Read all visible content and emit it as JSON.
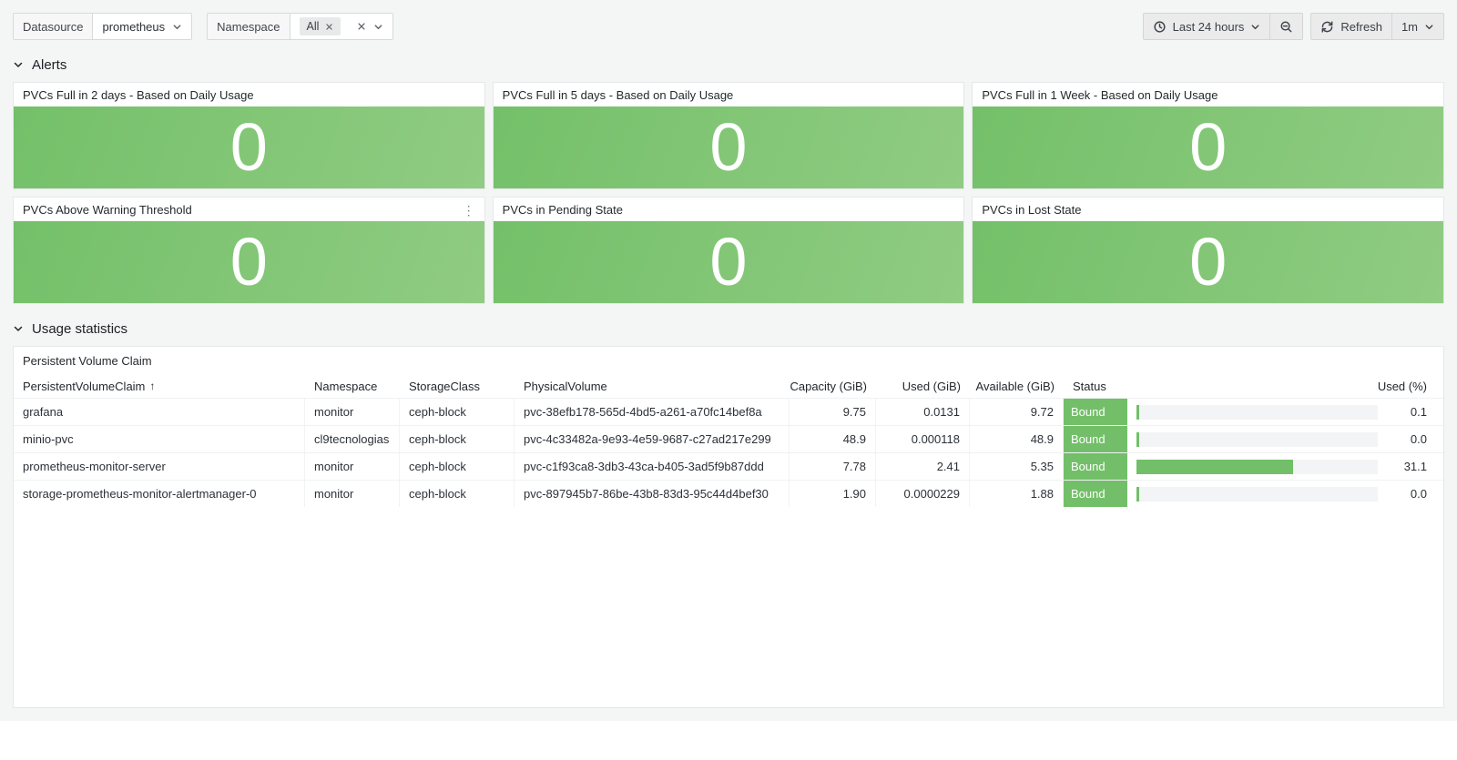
{
  "toolbar": {
    "datasource_label": "Datasource",
    "datasource_value": "prometheus",
    "namespace_label": "Namespace",
    "namespace_tag": "All",
    "time_range": "Last 24 hours",
    "refresh_label": "Refresh",
    "refresh_interval": "1m"
  },
  "sections": {
    "alerts": "Alerts",
    "usage": "Usage statistics"
  },
  "alert_panels": [
    {
      "title": "PVCs Full in 2 days - Based on Daily Usage",
      "value": "0"
    },
    {
      "title": "PVCs Full in 5 days - Based on Daily Usage",
      "value": "0"
    },
    {
      "title": "PVCs Full in 1 Week - Based on Daily Usage",
      "value": "0"
    },
    {
      "title": "PVCs Above Warning Threshold",
      "value": "0"
    },
    {
      "title": "PVCs in Pending State",
      "value": "0"
    },
    {
      "title": "PVCs in Lost State",
      "value": "0"
    }
  ],
  "table_panel": {
    "title": "Persistent Volume Claim",
    "headers": {
      "name": "PersistentVolumeClaim",
      "namespace": "Namespace",
      "storageclass": "StorageClass",
      "physicalvolume": "PhysicalVolume",
      "capacity": "Capacity (GiB)",
      "used": "Used (GiB)",
      "available": "Available (GiB)",
      "status": "Status",
      "used_pct": "Used (%)"
    },
    "rows": [
      {
        "name": "grafana",
        "namespace": "monitor",
        "storageclass": "ceph-block",
        "physicalvolume": "pvc-38efb178-565d-4bd5-a261-a70fc14bef8a",
        "capacity": "9.75",
        "used": "0.0131",
        "available": "9.72",
        "status": "Bound",
        "used_pct": "0.1",
        "bar_fill_pct": 1
      },
      {
        "name": "minio-pvc",
        "namespace": "cl9tecnologias",
        "storageclass": "ceph-block",
        "physicalvolume": "pvc-4c33482a-9e93-4e59-9687-c27ad217e299",
        "capacity": "48.9",
        "used": "0.000118",
        "available": "48.9",
        "status": "Bound",
        "used_pct": "0.0",
        "bar_fill_pct": 1
      },
      {
        "name": "prometheus-monitor-server",
        "namespace": "monitor",
        "storageclass": "ceph-block",
        "physicalvolume": "pvc-c1f93ca8-3db3-43ca-b405-3ad5f9b87ddd",
        "capacity": "7.78",
        "used": "2.41",
        "available": "5.35",
        "status": "Bound",
        "used_pct": "31.1",
        "bar_fill_pct": 65
      },
      {
        "name": "storage-prometheus-monitor-alertmanager-0",
        "namespace": "monitor",
        "storageclass": "ceph-block",
        "physicalvolume": "pvc-897945b7-86be-43b8-83d3-95c44d4bef30",
        "capacity": "1.90",
        "used": "0.0000229",
        "available": "1.88",
        "status": "Bound",
        "used_pct": "0.0",
        "bar_fill_pct": 1
      }
    ]
  },
  "icons": {
    "kebab": "⋮",
    "sort_asc": "↑"
  },
  "colors": {
    "green": "#73bf69",
    "stat_green_1": "#74c069",
    "stat_green_2": "#90cc83",
    "page_bg": "#f4f5f5",
    "panel_bg": "#ffffff"
  }
}
